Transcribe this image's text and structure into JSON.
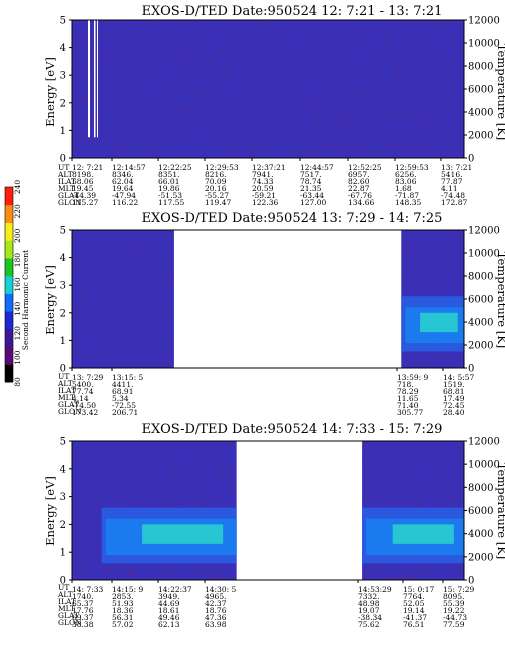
{
  "chart_data": [
    {
      "type": "heatmap",
      "title": "EXOS-D/TED    Date:950524  12: 7:21 - 13: 7:21",
      "ylabel": "Energy [eV]",
      "y2label": "Temperature [K]",
      "ylim": [
        0,
        5
      ],
      "y2lim": [
        0,
        12000
      ],
      "yticks": [
        0,
        1,
        2,
        3,
        4,
        5
      ],
      "y2ticks": [
        0,
        2000,
        4000,
        6000,
        8000,
        10000,
        12000
      ],
      "data_segments": [
        [
          0,
          1
        ]
      ],
      "ephemeris": {
        "labels": [
          "UT",
          "ALT",
          "ILAT",
          "MLT",
          "GLAT",
          "GLON"
        ],
        "columns": [
          [
            "12: 7:21",
            "8198.",
            "58.06",
            "19.45",
            "-44.39",
            "115.27"
          ],
          [
            "12:14:57",
            "8346.",
            "62.04",
            "19.64",
            "-47.94",
            "116.22"
          ],
          [
            "12:22:25",
            "8351.",
            "66.01",
            "19.86",
            "-51.53",
            "117.55"
          ],
          [
            "12:29:53",
            "8216.",
            "70.09",
            "20.16",
            "-55.27",
            "119.47"
          ],
          [
            "12:37:21",
            "7941.",
            "74.33",
            "20.59",
            "-59.21",
            "122.36"
          ],
          [
            "12:44:57",
            "7517.",
            "78.74",
            "21.35",
            "-63.44",
            "127.00"
          ],
          [
            "12:52:25",
            "6957.",
            "82.60",
            "22.87",
            "-67.76",
            "134.66"
          ],
          [
            "12:59:53",
            "6256.",
            "83.06",
            "1.68",
            "-71.87",
            "148.35"
          ],
          [
            "13: 7:21",
            "5416.",
            "77.87",
            "4.11",
            "-74.48",
            "172.87"
          ]
        ]
      }
    },
    {
      "type": "heatmap",
      "title": "EXOS-D/TED    Date:950524  13: 7:29 - 14: 7:25",
      "ylabel": "Energy [eV]",
      "y2label": "Temperature [K]",
      "ylim": [
        0,
        5
      ],
      "y2lim": [
        0,
        12000
      ],
      "yticks": [
        0,
        1,
        2,
        3,
        4,
        5
      ],
      "y2ticks": [
        0,
        2000,
        4000,
        6000,
        8000,
        10000,
        12000
      ],
      "data_segments": [
        [
          0,
          0.26
        ],
        [
          0.84,
          1
        ]
      ],
      "ephemeris": {
        "labels": [
          "UT",
          "ALT",
          "ILAT",
          "MLT",
          "GLAT",
          "GLON"
        ],
        "columns": [
          [
            "13: 7:29",
            "5400.",
            "77.74",
            "4.14",
            "-74.50",
            "173.42"
          ],
          [
            "13:15: 5",
            "4411.",
            "68.91",
            "5.34",
            "-72.55",
            "206.71"
          ],
          [
            "13:59: 9",
            "718.",
            "78.29",
            "11.65",
            "71.40",
            "305.77"
          ],
          [
            "14: 5:57",
            "1519.",
            "68.81",
            "17.49",
            "72.45",
            "28.40"
          ]
        ]
      }
    },
    {
      "type": "heatmap",
      "title": "EXOS-D/TED    Date:950524  14: 7:33 - 15: 7:29",
      "ylabel": "Energy [eV]",
      "y2label": "Temperature [K]",
      "ylim": [
        0,
        5
      ],
      "y2lim": [
        0,
        12000
      ],
      "yticks": [
        0,
        1,
        2,
        3,
        4,
        5
      ],
      "y2ticks": [
        0,
        2000,
        4000,
        6000,
        8000,
        10000,
        12000
      ],
      "data_segments": [
        [
          0,
          0.42
        ],
        [
          0.74,
          1
        ]
      ],
      "ephemeris": {
        "labels": [
          "UT",
          "ALT",
          "ILAT",
          "MLT",
          "GLAT",
          "GLON"
        ],
        "columns": [
          [
            "14: 7:33",
            "1740.",
            "65.37",
            "17.76",
            "69.37",
            "38.38"
          ],
          [
            "14:15: 9",
            "2853.",
            "51.93",
            "18.36",
            "56.31",
            "57.02"
          ],
          [
            "14:22:37",
            "3949.",
            "44.69",
            "18.61",
            "49.46",
            "62.13"
          ],
          [
            "14:30: 5",
            "4965.",
            "42.37",
            "18.76",
            "47.36",
            "63.98"
          ],
          [
            "14:53:29",
            "7332.",
            "48.98",
            "19.07",
            "-38.34",
            "75.62"
          ],
          [
            "15: 0:17",
            "7764.",
            "52.05",
            "19.14",
            "-41.37",
            "76.51"
          ],
          [
            "15: 7:29",
            "8095.",
            "55.39",
            "19.22",
            "-44.73",
            "77.59"
          ]
        ]
      }
    }
  ],
  "colorbar": {
    "label": "Second Harmonic Current",
    "ticks": [
      80,
      100,
      120,
      140,
      160,
      180,
      200,
      220,
      240
    ],
    "colors": [
      "#000000",
      "#5a0a78",
      "#3a1a9a",
      "#1e2ad0",
      "#0f6cff",
      "#10d4d4",
      "#18c820",
      "#a8e81a",
      "#f6ee14",
      "#ff8c10",
      "#ff1e10"
    ]
  },
  "colors": {
    "background": "#3a30b8",
    "noise": "#7a2050",
    "band_mid": "#1a7df0",
    "band_core": "#2ee0c8"
  }
}
